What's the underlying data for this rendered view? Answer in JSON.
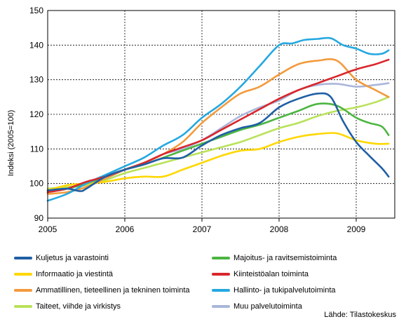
{
  "chart_data": {
    "type": "line",
    "title": "",
    "xlabel": "",
    "ylabel": "Indeksi (2005=100)",
    "xlim": [
      2005,
      2009.5
    ],
    "ylim": [
      90,
      150
    ],
    "x_ticks": [
      "2005",
      "2006",
      "2007",
      "2008",
      "2009"
    ],
    "y_ticks": [
      "90",
      "100",
      "110",
      "120",
      "130",
      "140",
      "150"
    ],
    "grid": true,
    "legend_placement": "bottom",
    "series": [
      {
        "name": "Kuljetus ja varastointi",
        "color": "#1f5fa5",
        "x": [
          2005,
          2005.25,
          2005.42,
          2005.5,
          2005.75,
          2006,
          2006.25,
          2006.5,
          2006.75,
          2007,
          2007.25,
          2007.5,
          2007.75,
          2008,
          2008.25,
          2008.5,
          2008.67,
          2008.83,
          2009,
          2009.17,
          2009.33,
          2009.42
        ],
        "y": [
          98,
          98.5,
          97.8,
          98.5,
          102,
          104,
          105.5,
          107.3,
          107.5,
          111,
          114,
          116,
          117.5,
          122,
          124.5,
          126,
          125,
          118,
          112,
          108,
          104.5,
          102
        ]
      },
      {
        "name": "Informaatio ja viestintä",
        "color": "#ffd700",
        "x": [
          2005,
          2005.25,
          2005.5,
          2005.75,
          2006,
          2006.25,
          2006.5,
          2006.75,
          2007,
          2007.25,
          2007.5,
          2007.75,
          2008,
          2008.25,
          2008.5,
          2008.75,
          2009,
          2009.25,
          2009.42
        ],
        "y": [
          98,
          99.5,
          100,
          100.5,
          101.5,
          102,
          102,
          104,
          106,
          108,
          109.5,
          110,
          112,
          113.5,
          114.3,
          114.5,
          112.5,
          111.5,
          111.5
        ]
      },
      {
        "name": "Ammatillinen, tieteellinen ja tekninen toiminta",
        "color": "#f39a3c",
        "x": [
          2005,
          2005.25,
          2005.5,
          2005.75,
          2006,
          2006.25,
          2006.5,
          2006.75,
          2007,
          2007.25,
          2007.5,
          2007.75,
          2008,
          2008.25,
          2008.5,
          2008.75,
          2009,
          2009.25,
          2009.42
        ],
        "y": [
          97,
          97.5,
          99,
          101.5,
          104,
          106,
          108.5,
          112,
          117.5,
          122,
          126,
          128,
          131.5,
          134.5,
          135.5,
          135.5,
          130,
          127,
          125
        ]
      },
      {
        "name": "Taiteet, viihde ja virkistys",
        "color": "#b9e25a",
        "x": [
          2005,
          2005.25,
          2005.5,
          2005.75,
          2006,
          2006.25,
          2006.5,
          2006.75,
          2007,
          2007.25,
          2007.5,
          2007.75,
          2008,
          2008.25,
          2008.5,
          2008.75,
          2009,
          2009.25,
          2009.42
        ],
        "y": [
          98.5,
          99,
          99.5,
          101,
          103,
          104.5,
          106,
          107.5,
          109,
          110.5,
          112,
          114,
          116,
          117.5,
          119.5,
          121,
          122,
          123.5,
          125
        ]
      },
      {
        "name": "Majoitus- ja ravitsemistoiminta",
        "color": "#4cb541",
        "x": [
          2005,
          2005.25,
          2005.5,
          2005.75,
          2006,
          2006.25,
          2006.5,
          2006.75,
          2007,
          2007.25,
          2007.5,
          2007.75,
          2008,
          2008.25,
          2008.5,
          2008.75,
          2009,
          2009.17,
          2009.33,
          2009.42
        ],
        "y": [
          97.5,
          98.5,
          100,
          102,
          104,
          105.5,
          107.5,
          109.5,
          111.5,
          113.5,
          115.5,
          117,
          119,
          121,
          123,
          122.5,
          119,
          117.5,
          116.5,
          114
        ]
      },
      {
        "name": "Kiinteistöalan toiminta",
        "color": "#d9262c",
        "x": [
          2005,
          2005.25,
          2005.5,
          2005.75,
          2006,
          2006.25,
          2006.5,
          2006.75,
          2007,
          2007.25,
          2007.5,
          2007.75,
          2008,
          2008.25,
          2008.5,
          2008.75,
          2009,
          2009.25,
          2009.42
        ],
        "y": [
          97.5,
          98.5,
          100.5,
          102,
          104,
          106,
          108.5,
          110.5,
          112.5,
          115.5,
          118.5,
          121.5,
          124.5,
          127,
          129,
          131,
          133,
          134.5,
          135.8
        ]
      },
      {
        "name": "Hallinto- ja tukipalvelutoiminta",
        "color": "#25a8e0",
        "x": [
          2005,
          2005.25,
          2005.5,
          2005.75,
          2006,
          2006.25,
          2006.5,
          2006.75,
          2007,
          2007.25,
          2007.5,
          2007.75,
          2008,
          2008.17,
          2008.33,
          2008.5,
          2008.67,
          2008.83,
          2009,
          2009.17,
          2009.33,
          2009.42
        ],
        "y": [
          95,
          97,
          100,
          102.5,
          105,
          107.5,
          111,
          114,
          119,
          123,
          128,
          134,
          140,
          140.5,
          141.5,
          141.8,
          142,
          140,
          139,
          137.5,
          137.5,
          138.5
        ]
      },
      {
        "name": "Muu palvelutoiminta",
        "color": "#aab6da",
        "x": [
          2005,
          2005.25,
          2005.5,
          2005.75,
          2006,
          2006.25,
          2006.5,
          2006.75,
          2007,
          2007.25,
          2007.5,
          2007.75,
          2008,
          2008.25,
          2008.5,
          2008.75,
          2009,
          2009.25,
          2009.42
        ],
        "y": [
          98,
          98.5,
          100,
          101.5,
          104,
          106,
          108.5,
          110,
          112.5,
          116,
          119.5,
          122,
          124,
          127,
          128.5,
          128.8,
          128,
          128.5,
          129
        ]
      }
    ]
  },
  "source": "Lähde: Tilastokeskus"
}
